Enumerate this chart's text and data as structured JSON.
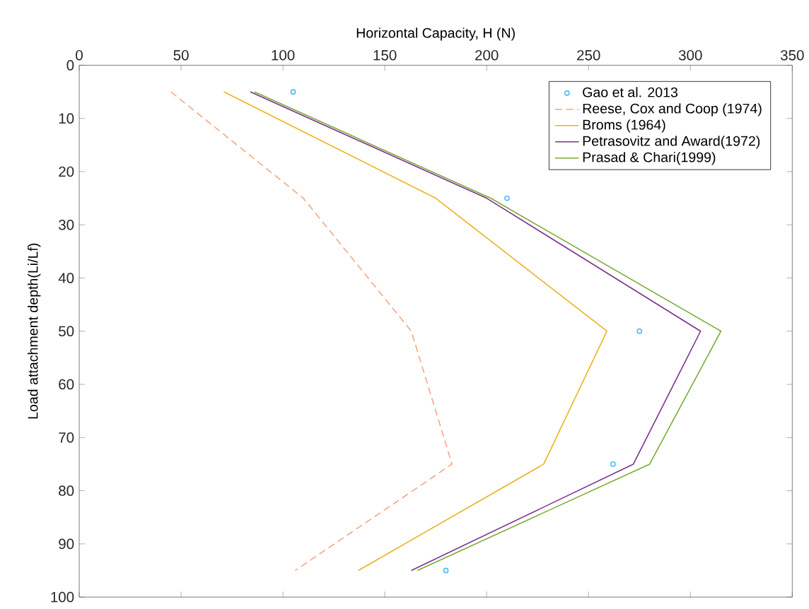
{
  "chart_data": {
    "type": "line",
    "xlabel": "Horizontal Capacity, H (N)",
    "ylabel": "Load attachment depth(Li/Lf)",
    "xlim": [
      0,
      350
    ],
    "xticks": [
      0,
      50,
      100,
      150,
      200,
      250,
      300,
      350
    ],
    "ylim": [
      100,
      0
    ],
    "yticks": [
      0,
      10,
      20,
      30,
      40,
      50,
      60,
      70,
      80,
      90,
      100
    ],
    "legend": "top right",
    "grid": false,
    "series": [
      {
        "name": "Gao et al. 2013",
        "type": "scatter",
        "marker": "circle",
        "color": "#4dbeee",
        "x": [
          105,
          210,
          275,
          262,
          180
        ],
        "values": [
          5,
          25,
          50,
          75,
          95
        ]
      },
      {
        "name": "Reese, Cox and Coop (1974)",
        "line_style": "dashed",
        "color": "#f4a582",
        "x": [
          45,
          110,
          163,
          183,
          106
        ],
        "values": [
          5,
          25,
          50,
          75,
          95
        ]
      },
      {
        "name": "Broms (1964)",
        "line_style": "solid",
        "color": "#edb120",
        "x": [
          71,
          175,
          259,
          228,
          137
        ],
        "values": [
          5,
          25,
          50,
          75,
          95
        ]
      },
      {
        "name": "Petrasovitz and Award(1972)",
        "line_style": "solid",
        "color": "#7e2f8e",
        "x": [
          84,
          200,
          305,
          272,
          163
        ],
        "values": [
          5,
          25,
          50,
          75,
          95
        ]
      },
      {
        "name": "Prasad & Chari(1999)",
        "line_style": "solid",
        "color": "#77ac30",
        "x": [
          86,
          202,
          315,
          280,
          166
        ],
        "values": [
          5,
          25,
          50,
          75,
          95
        ]
      }
    ]
  }
}
